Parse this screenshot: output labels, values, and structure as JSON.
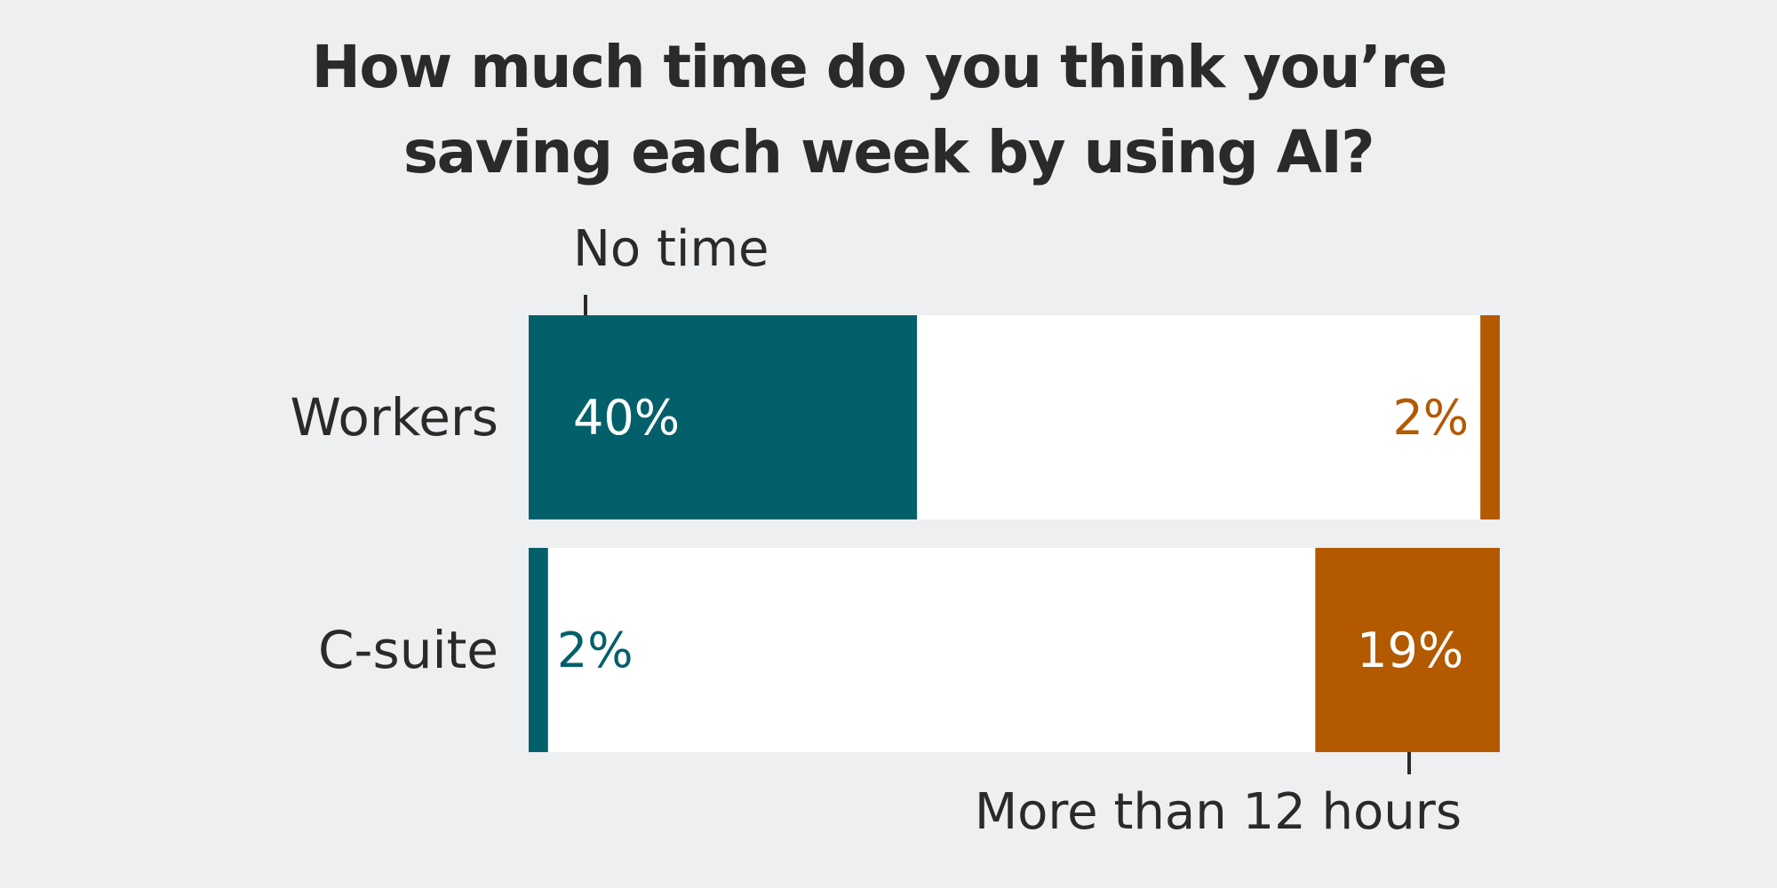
{
  "chart_data": {
    "type": "bar",
    "orientation": "horizontal",
    "stacked": true,
    "title": "How much time do you think you’re saving each week by using AI?",
    "title_lines": [
      "How much time do you think you’re",
      "saving each week by using AI?"
    ],
    "categories": [
      "Workers",
      "C-suite"
    ],
    "xlim": [
      0,
      100
    ],
    "series": [
      {
        "name": "No time",
        "color": "#03606a",
        "values": [
          40,
          2
        ],
        "labels": [
          "40%",
          "2%"
        ]
      },
      {
        "color": "#ffffff",
        "values": [
          58,
          79
        ]
      },
      {
        "name": "More than 12 hours",
        "color": "#b35900",
        "values": [
          2,
          19
        ],
        "labels": [
          "2%",
          "19%"
        ]
      }
    ],
    "annotations": {
      "top": "No time",
      "bottom": "More than 12 hours"
    },
    "colors": {
      "background": "#eeeff1",
      "text": "#2a2a2a",
      "teal": "#03606a",
      "orange": "#b35900"
    }
  }
}
